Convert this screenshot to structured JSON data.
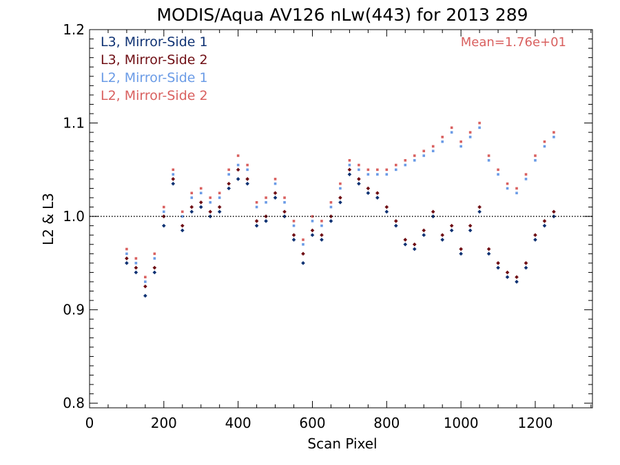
{
  "chart_data": {
    "type": "scatter",
    "title": "MODIS/Aqua AV126 nLw(443) for 2013 289",
    "xlabel": "Scan Pixel",
    "ylabel": "L2 & L3",
    "xlim": [
      0,
      1354
    ],
    "ylim": [
      0.795,
      1.2
    ],
    "xticks": [
      0,
      200,
      400,
      600,
      800,
      1000,
      1200
    ],
    "xtick_labels": [
      "0",
      "200",
      "400",
      "600",
      "800",
      "1000",
      "1200"
    ],
    "yticks": [
      0.8,
      0.9,
      1.0,
      1.1,
      1.2
    ],
    "ytick_labels": [
      "0.8",
      "0.9",
      "1.0",
      "1.1",
      "1.2"
    ],
    "reference_line": {
      "y": 1.0,
      "style": "dotted"
    },
    "annotation": "Mean=1.76e+01",
    "annotation_color": "#d9605f",
    "legend_position": "top-left",
    "series": [
      {
        "name": "L3, Mirror-Side 1",
        "color": "#0f3273",
        "x": [
          100,
          125,
          150,
          175,
          200,
          225,
          250,
          275,
          300,
          325,
          350,
          375,
          400,
          425,
          450,
          475,
          500,
          525,
          550,
          575,
          600,
          625,
          650,
          675,
          700,
          725,
          750,
          775,
          800,
          825,
          850,
          875,
          900,
          925,
          950,
          975,
          1000,
          1025,
          1050,
          1075,
          1100,
          1125,
          1150,
          1175,
          1200,
          1225,
          1250
        ],
        "y": [
          0.95,
          0.94,
          0.915,
          0.94,
          0.99,
          1.035,
          0.985,
          1.005,
          1.01,
          1.0,
          1.005,
          1.03,
          1.04,
          1.035,
          0.99,
          0.995,
          1.02,
          1.0,
          0.975,
          0.95,
          0.98,
          0.975,
          0.995,
          1.015,
          1.045,
          1.035,
          1.025,
          1.02,
          1.005,
          0.99,
          0.97,
          0.965,
          0.98,
          1.0,
          0.975,
          0.985,
          0.96,
          0.985,
          1.005,
          0.96,
          0.945,
          0.935,
          0.93,
          0.945,
          0.975,
          0.99,
          1.0
        ]
      },
      {
        "name": "L3, Mirror-Side 2",
        "color": "#6f0e14",
        "x": [
          100,
          125,
          150,
          175,
          200,
          225,
          250,
          275,
          300,
          325,
          350,
          375,
          400,
          425,
          450,
          475,
          500,
          525,
          550,
          575,
          600,
          625,
          650,
          675,
          700,
          725,
          750,
          775,
          800,
          825,
          850,
          875,
          900,
          925,
          950,
          975,
          1000,
          1025,
          1050,
          1075,
          1100,
          1125,
          1150,
          1175,
          1200,
          1225,
          1250
        ],
        "y": [
          0.955,
          0.945,
          0.925,
          0.945,
          1.0,
          1.04,
          0.99,
          1.01,
          1.015,
          1.005,
          1.01,
          1.035,
          1.05,
          1.04,
          0.995,
          1.0,
          1.025,
          1.005,
          0.98,
          0.96,
          0.985,
          0.98,
          1.0,
          1.02,
          1.05,
          1.04,
          1.03,
          1.025,
          1.01,
          0.995,
          0.975,
          0.97,
          0.985,
          1.005,
          0.98,
          0.99,
          0.965,
          0.99,
          1.01,
          0.965,
          0.95,
          0.94,
          0.935,
          0.95,
          0.98,
          0.995,
          1.005
        ]
      },
      {
        "name": "L2, Mirror-Side 1",
        "color": "#6a9be6",
        "x": [
          100,
          125,
          150,
          175,
          200,
          225,
          250,
          275,
          300,
          325,
          350,
          375,
          400,
          425,
          450,
          475,
          500,
          525,
          550,
          575,
          600,
          625,
          650,
          675,
          700,
          725,
          750,
          775,
          800,
          825,
          850,
          875,
          900,
          925,
          950,
          975,
          1000,
          1025,
          1050,
          1075,
          1100,
          1125,
          1150,
          1175,
          1200,
          1225,
          1250
        ],
        "y": [
          0.96,
          0.95,
          0.93,
          0.955,
          1.005,
          1.045,
          1.0,
          1.02,
          1.025,
          1.015,
          1.02,
          1.045,
          1.055,
          1.05,
          1.01,
          1.015,
          1.035,
          1.015,
          0.99,
          0.97,
          0.995,
          0.99,
          1.01,
          1.03,
          1.055,
          1.05,
          1.045,
          1.045,
          1.045,
          1.05,
          1.055,
          1.06,
          1.065,
          1.07,
          1.08,
          1.09,
          1.075,
          1.085,
          1.095,
          1.06,
          1.045,
          1.03,
          1.025,
          1.04,
          1.06,
          1.075,
          1.085
        ]
      },
      {
        "name": "L2, Mirror-Side 2",
        "color": "#d9605f",
        "x": [
          100,
          125,
          150,
          175,
          200,
          225,
          250,
          275,
          300,
          325,
          350,
          375,
          400,
          425,
          450,
          475,
          500,
          525,
          550,
          575,
          600,
          625,
          650,
          675,
          700,
          725,
          750,
          775,
          800,
          825,
          850,
          875,
          900,
          925,
          950,
          975,
          1000,
          1025,
          1050,
          1075,
          1100,
          1125,
          1150,
          1175,
          1200,
          1225,
          1250
        ],
        "y": [
          0.965,
          0.955,
          0.935,
          0.96,
          1.01,
          1.05,
          1.005,
          1.025,
          1.03,
          1.02,
          1.025,
          1.05,
          1.065,
          1.055,
          1.015,
          1.02,
          1.04,
          1.02,
          0.995,
          0.975,
          1.0,
          0.995,
          1.015,
          1.035,
          1.06,
          1.055,
          1.05,
          1.05,
          1.05,
          1.055,
          1.06,
          1.065,
          1.07,
          1.075,
          1.085,
          1.095,
          1.08,
          1.09,
          1.1,
          1.065,
          1.05,
          1.035,
          1.03,
          1.045,
          1.065,
          1.08,
          1.09
        ]
      }
    ]
  }
}
